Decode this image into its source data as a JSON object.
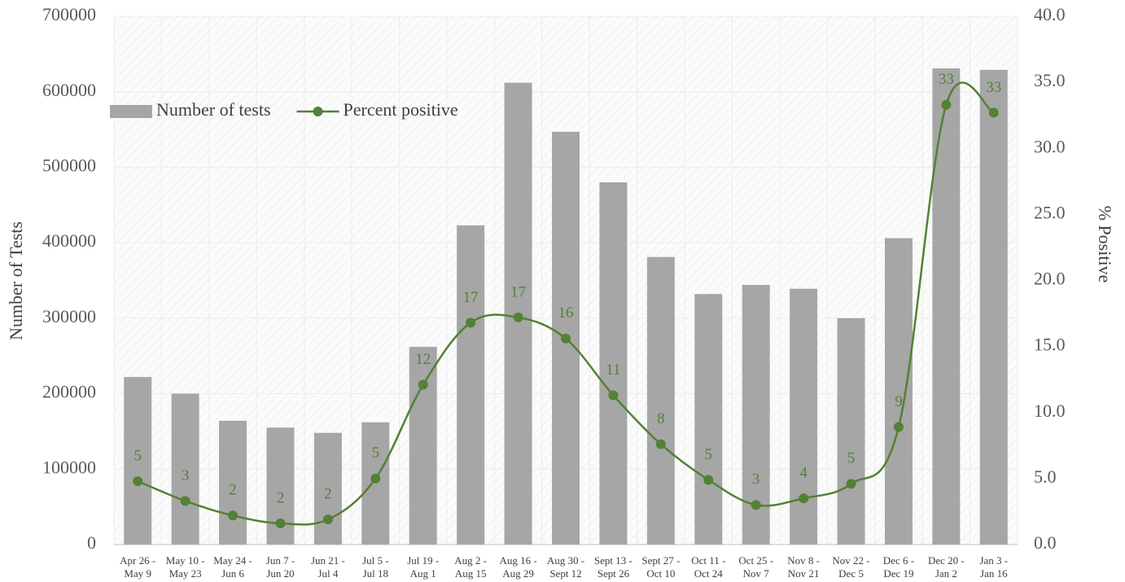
{
  "chart_data": {
    "type": "bar+line",
    "categories": [
      "Apr 26 -\nMay 9",
      "May 10 -\nMay 23",
      "May 24 -\nJun 6",
      "Jun 7 -\nJun 20",
      "Jun 21 -\nJul 4",
      "Jul 5 -\nJul 18",
      "Jul 19 -\nAug 1",
      "Aug 2 -\nAug 15",
      "Aug 16 -\nAug 29",
      "Aug 30 -\nSept 12",
      "Sept 13 -\nSept 26",
      "Sept 27 -\nOct 10",
      "Oct 11 -\nOct 24",
      "Oct 25 -\nNov 7",
      "Nov 8 -\nNov 21",
      "Nov 22 -\nDec 5",
      "Dec 6 -\nDec 19",
      "Dec 20 -\nJan 2",
      "Jan 3 -\nJan 16"
    ],
    "y_label": "Number of Tests",
    "y2_label": "% Positive",
    "ylim": [
      0,
      700000
    ],
    "yticks": [
      0,
      100000,
      200000,
      300000,
      400000,
      500000,
      600000,
      700000
    ],
    "y2lim": [
      0,
      40
    ],
    "y2ticks": [
      {
        "value": 0,
        "label": "0.0"
      },
      {
        "value": 5,
        "label": "5.0"
      },
      {
        "value": 10,
        "label": "10.0"
      },
      {
        "value": 15,
        "label": "15.0"
      },
      {
        "value": 20,
        "label": "20.0"
      },
      {
        "value": 25,
        "label": "25.0"
      },
      {
        "value": 30,
        "label": "30.0"
      },
      {
        "value": 35,
        "label": "35.0"
      },
      {
        "value": 40,
        "label": "40.0"
      }
    ],
    "grid": true,
    "legend": "top-left",
    "series": [
      {
        "name": "Number of tests",
        "type": "bar",
        "color": "#a6a6a6",
        "values": [
          222000,
          200000,
          164000,
          155000,
          148000,
          162000,
          262000,
          423000,
          612000,
          547000,
          480000,
          381000,
          332000,
          344000,
          339000,
          300000,
          406000,
          631000,
          629000
        ]
      },
      {
        "name": "Percent positive",
        "type": "line",
        "axis": "y2",
        "color": "#538135",
        "values": [
          4.8,
          3.3,
          2.2,
          1.6,
          1.9,
          5.0,
          12.1,
          16.8,
          17.2,
          15.6,
          11.3,
          7.6,
          4.9,
          3.0,
          3.5,
          4.6,
          8.9,
          33.3,
          32.7
        ],
        "value_labels": [
          "5",
          "3",
          "2",
          "2",
          "2",
          "5",
          "12",
          "17",
          "17",
          "16",
          "11",
          "8",
          "5",
          "3",
          "4",
          "5",
          "9",
          "33",
          "33"
        ]
      }
    ]
  }
}
